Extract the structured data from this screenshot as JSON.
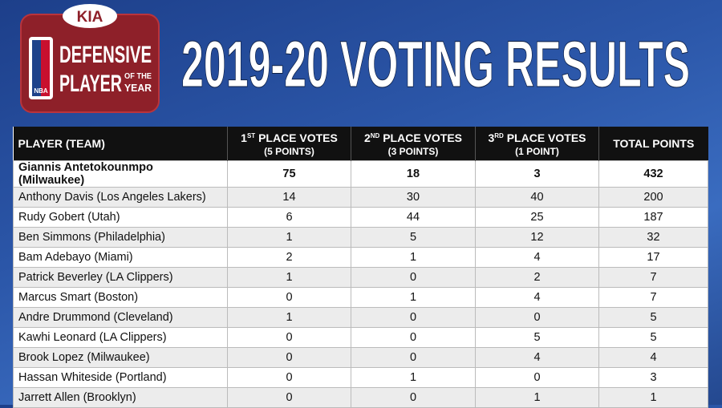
{
  "logo": {
    "brand": "KIA",
    "line1": "DEFENSIVE",
    "line2": "PLAYER",
    "line3a": "OF THE",
    "line3b": "YEAR",
    "league": "NBA"
  },
  "title": "2019-20 VOTING RESULTS",
  "table": {
    "header": [
      {
        "label": "PLAYER (TEAM)"
      },
      {
        "ordinal": "1",
        "suffix": "ST",
        "label": "PLACE VOTES",
        "points": "(5 POINTS)"
      },
      {
        "ordinal": "2",
        "suffix": "ND",
        "label": "PLACE VOTES",
        "points": "(3 POINTS)"
      },
      {
        "ordinal": "3",
        "suffix": "RD",
        "label": "PLACE VOTES",
        "points": "(1 POINT)"
      },
      {
        "label": "TOTAL POINTS"
      }
    ],
    "rows": [
      [
        "Giannis Antetokounmpo (Milwaukee)",
        75,
        18,
        3,
        432
      ],
      [
        "Anthony Davis (Los Angeles Lakers)",
        14,
        30,
        40,
        200
      ],
      [
        "Rudy Gobert (Utah)",
        6,
        44,
        25,
        187
      ],
      [
        "Ben Simmons (Philadelphia)",
        1,
        5,
        12,
        32
      ],
      [
        "Bam Adebayo (Miami)",
        2,
        1,
        4,
        17
      ],
      [
        "Patrick Beverley (LA Clippers)",
        1,
        0,
        2,
        7
      ],
      [
        "Marcus Smart (Boston)",
        0,
        1,
        4,
        7
      ],
      [
        "Andre Drummond (Cleveland)",
        1,
        0,
        0,
        5
      ],
      [
        "Kawhi Leonard (LA Clippers)",
        0,
        0,
        5,
        5
      ],
      [
        "Brook Lopez (Milwaukee)",
        0,
        0,
        4,
        4
      ],
      [
        "Hassan Whiteside (Portland)",
        0,
        1,
        0,
        3
      ],
      [
        "Jarrett Allen (Brooklyn)",
        0,
        0,
        1,
        1
      ]
    ]
  }
}
